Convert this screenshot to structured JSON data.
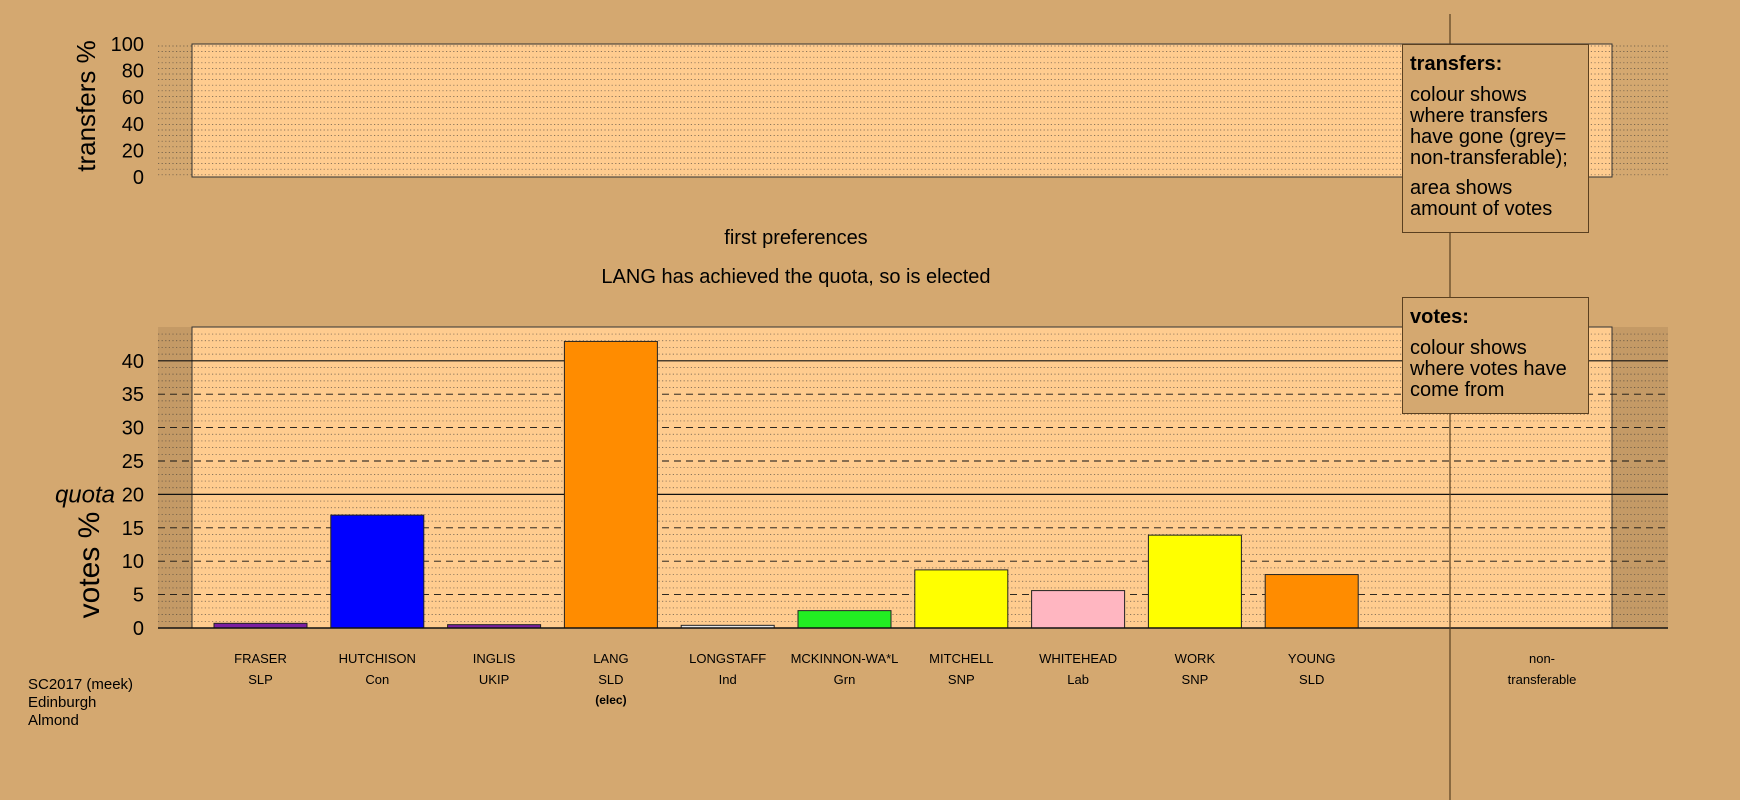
{
  "chart_data": {
    "type": "bar",
    "stage_title": "first preferences",
    "status_text": "LANG has achieved the quota, so is elected",
    "transfers_axis": {
      "label": "transfers %",
      "ticks": [
        0,
        20,
        40,
        60,
        80,
        100
      ],
      "ylim": [
        0,
        100
      ]
    },
    "votes_axis": {
      "label": "votes %",
      "ticks": [
        0,
        5,
        10,
        15,
        20,
        25,
        30,
        35,
        40
      ],
      "ylim": [
        0,
        45
      ]
    },
    "quota": {
      "label": "quota",
      "value": 20
    },
    "candidates": [
      {
        "name": "FRASER",
        "party": "SLP",
        "status": "",
        "value": 0.7,
        "color": "#7b1fa2"
      },
      {
        "name": "HUTCHISON",
        "party": "Con",
        "status": "",
        "value": 16.9,
        "color": "#0000ff"
      },
      {
        "name": "INGLIS",
        "party": "UKIP",
        "status": "",
        "value": 0.5,
        "color": "#7b1fa2"
      },
      {
        "name": "LANG",
        "party": "SLD",
        "status": "(elec)",
        "value": 42.9,
        "color": "#ff8c00"
      },
      {
        "name": "LONGSTAFF",
        "party": "Ind",
        "status": "",
        "value": 0.4,
        "color": "#e6e6e6"
      },
      {
        "name": "MCKINNON-WA*L",
        "party": "Grn",
        "status": "",
        "value": 2.6,
        "color": "#22ee22"
      },
      {
        "name": "MITCHELL",
        "party": "SNP",
        "status": "",
        "value": 8.7,
        "color": "#ffff00"
      },
      {
        "name": "WHITEHEAD",
        "party": "Lab",
        "status": "",
        "value": 5.6,
        "color": "#ffb6c1"
      },
      {
        "name": "WORK",
        "party": "SNP",
        "status": "",
        "value": 13.9,
        "color": "#ffff00"
      },
      {
        "name": "YOUNG",
        "party": "SLD",
        "status": "",
        "value": 8.0,
        "color": "#ff8c00"
      }
    ],
    "non_transferable": {
      "line1": "non-",
      "line2": "transferable",
      "value": 0
    },
    "grid": true
  },
  "legends": {
    "transfers": {
      "title": "transfers:",
      "text1": "colour shows where transfers have gone (grey= non-transferable);",
      "text2": "area shows amount of votes"
    },
    "votes": {
      "title": "votes:",
      "text1": "colour shows where votes have come from"
    }
  },
  "caption": {
    "line1": "SC2017 (meek)",
    "line2": "Edinburgh",
    "line3": "Almond"
  },
  "colors": {
    "background": "#d4a870",
    "plot_fill": "#ffcc8f",
    "gridline": "#333333"
  }
}
